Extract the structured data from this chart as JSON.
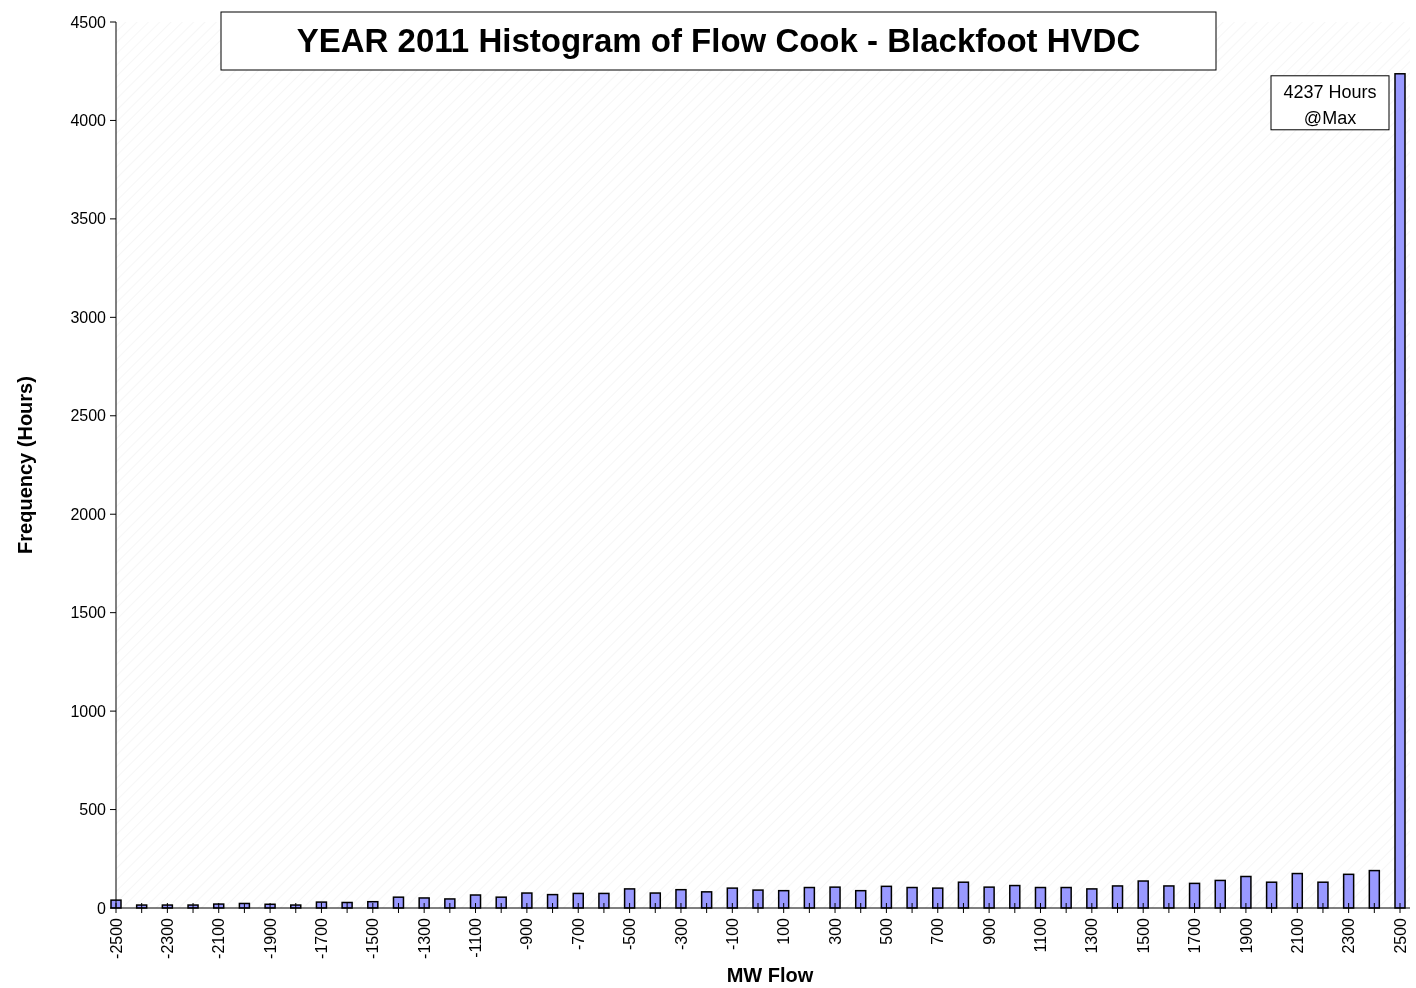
{
  "chart_data": {
    "type": "bar",
    "title": "YEAR 2011 Histogram of Flow Cook - Blackfoot HVDC",
    "xlabel": "MW Flow",
    "ylabel": "Frequency (Hours)",
    "categories": [
      "-2500",
      null,
      "-2300",
      null,
      "-2100",
      null,
      "-1900",
      null,
      "-1700",
      null,
      "-1500",
      null,
      "-1300",
      null,
      "-1100",
      null,
      "-900",
      null,
      "-700",
      null,
      "-500",
      null,
      "-300",
      null,
      "-100",
      null,
      "100",
      null,
      "300",
      null,
      "500",
      null,
      "700",
      null,
      "900",
      null,
      "1100",
      null,
      "1300",
      null,
      "1500",
      null,
      "1700",
      null,
      "1900",
      null,
      "2100",
      null,
      "2300",
      null,
      "2500"
    ],
    "values": [
      40,
      15,
      15,
      15,
      20,
      23,
      19,
      15,
      30,
      28,
      32,
      55,
      51,
      46,
      66,
      55,
      76,
      68,
      74,
      74,
      97,
      76,
      93,
      82,
      101,
      91,
      88,
      104,
      106,
      88,
      110,
      104,
      101,
      131,
      106,
      114,
      104,
      104,
      97,
      112,
      137,
      112,
      125,
      140,
      160,
      131,
      175,
      131,
      171,
      190,
      4237
    ],
    "color": "#9999ff",
    "ylim": [
      0,
      4500
    ],
    "yticks": [
      0,
      500,
      1000,
      1500,
      2000,
      2500,
      3000,
      3500,
      4000,
      4500
    ],
    "grid": false,
    "annotations": [
      {
        "text": "4237 Hours\n@Max",
        "x": "2500",
        "y": 4237
      }
    ]
  }
}
